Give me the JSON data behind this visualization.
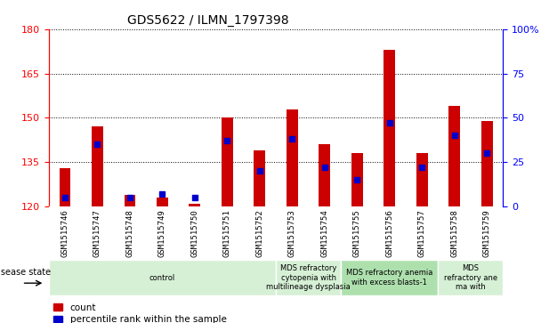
{
  "title": "GDS5622 / ILMN_1797398",
  "samples": [
    "GSM1515746",
    "GSM1515747",
    "GSM1515748",
    "GSM1515749",
    "GSM1515750",
    "GSM1515751",
    "GSM1515752",
    "GSM1515753",
    "GSM1515754",
    "GSM1515755",
    "GSM1515756",
    "GSM1515757",
    "GSM1515758",
    "GSM1515759"
  ],
  "counts": [
    133,
    147,
    124,
    123,
    121,
    150,
    139,
    153,
    141,
    138,
    173,
    138,
    154,
    149
  ],
  "percentile_ranks": [
    5,
    35,
    5,
    7,
    5,
    37,
    20,
    38,
    22,
    15,
    47,
    22,
    40,
    30
  ],
  "ylim_left": [
    120,
    180
  ],
  "ylim_right": [
    0,
    100
  ],
  "yticks_left": [
    120,
    135,
    150,
    165,
    180
  ],
  "yticks_right": [
    0,
    25,
    50,
    75,
    100
  ],
  "bar_color": "#cc0000",
  "marker_color": "#0000cc",
  "bar_width": 0.35,
  "disease_groups": [
    {
      "label": "control",
      "start": 0,
      "end": 7,
      "color": "#d6f0d6"
    },
    {
      "label": "MDS refractory\ncytopenia with\nmultilineage dysplasia",
      "start": 7,
      "end": 9,
      "color": "#d6f0d6"
    },
    {
      "label": "MDS refractory anemia\nwith excess blasts-1",
      "start": 9,
      "end": 12,
      "color": "#aee0ae"
    },
    {
      "label": "MDS\nrefractory ane\nma with",
      "start": 12,
      "end": 14,
      "color": "#d6f0d6"
    }
  ],
  "legend_items": [
    {
      "label": "count",
      "color": "#cc0000"
    },
    {
      "label": "percentile rank within the sample",
      "color": "#0000cc"
    }
  ],
  "background_color": "#ffffff",
  "plot_bg": "#ffffff",
  "tick_area_bg": "#d8d8d8"
}
